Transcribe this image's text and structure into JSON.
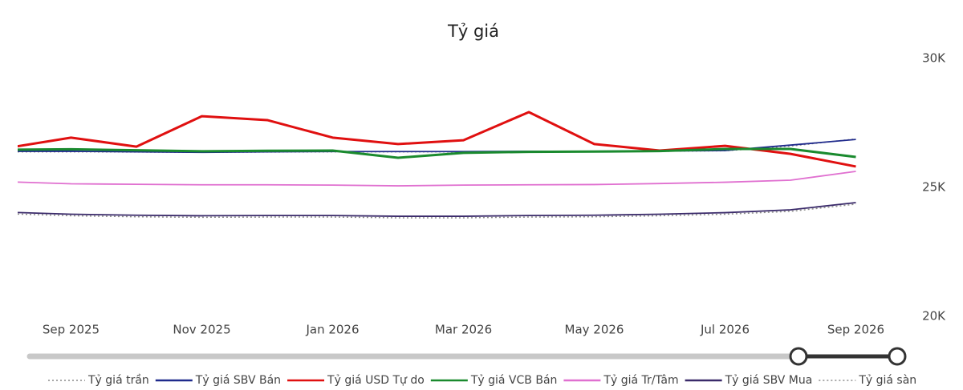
{
  "chart_data": {
    "type": "line",
    "title": "Tỷ giá",
    "categories": [
      null,
      "Sep 2025",
      null,
      "Nov 2025",
      null,
      "Jan 2026",
      null,
      "Mar 2026",
      null,
      "May 2026",
      null,
      "Jul 2026",
      null,
      "Sep 2026"
    ],
    "ylim": [
      20000,
      30000
    ],
    "yticks": [
      {
        "value": 20000,
        "label": "20K"
      },
      {
        "value": 25000,
        "label": "25K"
      },
      {
        "value": 30000,
        "label": "30K"
      }
    ],
    "series": [
      {
        "name": "Tỷ giá trần",
        "color": "#8a8a8a",
        "style": "dotted",
        "values": [
          26380,
          26380,
          26370,
          26360,
          26370,
          26380,
          26380,
          26380,
          26390,
          26390,
          26400,
          26420,
          26600,
          26880
        ]
      },
      {
        "name": "Tỷ giá SBV Bán",
        "color": "#1f2a8c",
        "style": "solid",
        "values": [
          26400,
          26400,
          26380,
          26360,
          26380,
          26390,
          26390,
          26390,
          26400,
          26400,
          26410,
          26430,
          26640,
          26860
        ]
      },
      {
        "name": "Tỷ giá USD Tự do",
        "color": "#e01010",
        "style": "solid",
        "values": [
          26520,
          26930,
          26580,
          27760,
          27610,
          26930,
          26680,
          26830,
          27920,
          26680,
          26430,
          26610,
          26300,
          25810
        ]
      },
      {
        "name": "Tỷ giá VCB Bán",
        "color": "#1a8a2e",
        "style": "solid",
        "values": [
          26460,
          26480,
          26440,
          26400,
          26420,
          26430,
          26150,
          26340,
          26380,
          26390,
          26410,
          26490,
          26490,
          26180
        ]
      },
      {
        "name": "Tỷ giá Tr/Tâm",
        "color": "#e070d0",
        "style": "solid",
        "values": [
          25220,
          25140,
          25120,
          25100,
          25100,
          25090,
          25060,
          25090,
          25100,
          25110,
          25150,
          25200,
          25280,
          25620
        ]
      },
      {
        "name": "Tỷ giá SBV Mua",
        "color": "#3a2a6a",
        "style": "solid",
        "values": [
          24040,
          23960,
          23920,
          23900,
          23910,
          23910,
          23880,
          23880,
          23910,
          23920,
          23960,
          24020,
          24130,
          24410
        ]
      },
      {
        "name": "Tỷ giá sàn",
        "color": "#8a8a8a",
        "style": "dotted",
        "values": [
          23980,
          23900,
          23860,
          23840,
          23850,
          23850,
          23820,
          23820,
          23850,
          23860,
          23900,
          23960,
          24070,
          24350
        ]
      }
    ]
  }
}
